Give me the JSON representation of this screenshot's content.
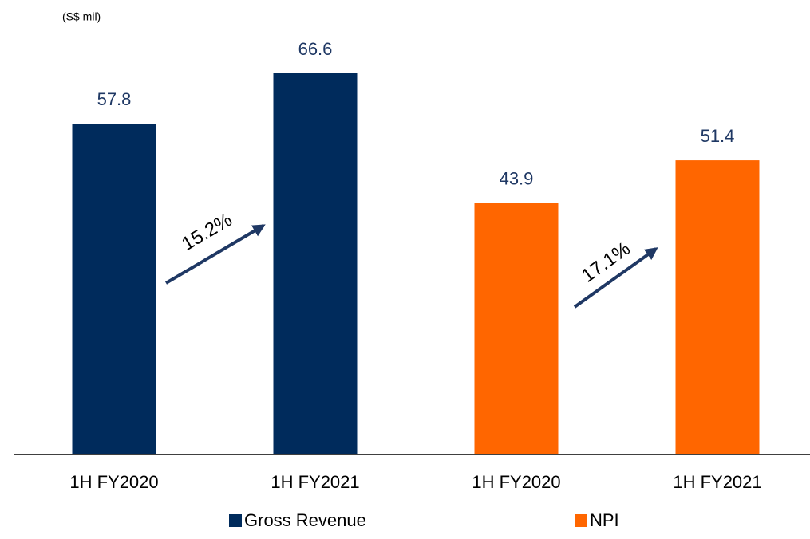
{
  "chart_data": {
    "type": "bar",
    "subtitle": "(S$ mil)",
    "categories": [
      "1H FY2020",
      "1H FY2021",
      "1H FY2020",
      "1H FY2021"
    ],
    "series": [
      {
        "name": "Gross Revenue",
        "color": "#002b5c",
        "values": [
          57.8,
          66.6,
          null,
          null
        ]
      },
      {
        "name": "NPI",
        "color": "#ff6600",
        "values": [
          null,
          null,
          43.9,
          51.4
        ]
      }
    ],
    "annotations": [
      {
        "text": "15.2%"
      },
      {
        "text": "17.1%"
      }
    ],
    "legend": "bottom"
  }
}
